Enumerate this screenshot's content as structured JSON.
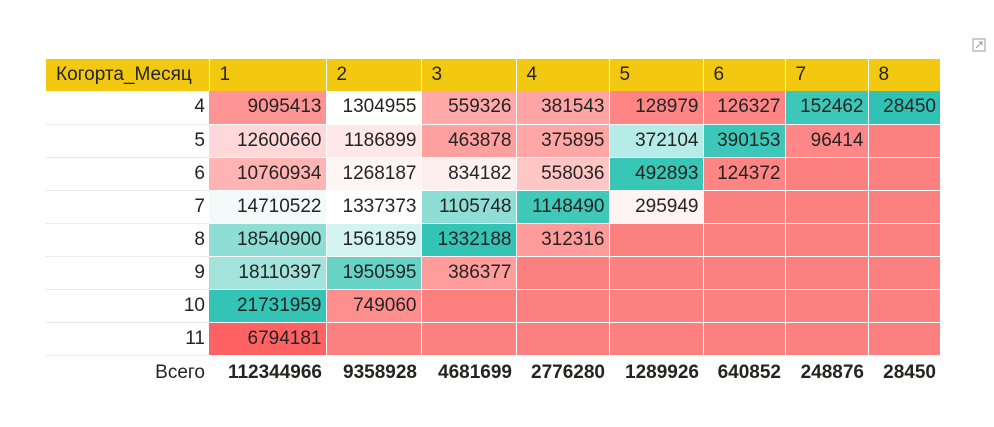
{
  "focus_icon": "focus-mode-icon",
  "matrix": {
    "corner_label": "Когорта_Месяц",
    "columns": [
      "1",
      "2",
      "3",
      "4",
      "5",
      "6",
      "7",
      "8"
    ],
    "rows": [
      {
        "label": "4",
        "values": [
          "9095413",
          "1304955",
          "559326",
          "381543",
          "128979",
          "126327",
          "152462",
          "28450"
        ]
      },
      {
        "label": "5",
        "values": [
          "12600660",
          "1186899",
          "463878",
          "375895",
          "372104",
          "390153",
          "96414",
          ""
        ]
      },
      {
        "label": "6",
        "values": [
          "10760934",
          "1268187",
          "834182",
          "558036",
          "492893",
          "124372",
          "",
          ""
        ]
      },
      {
        "label": "7",
        "values": [
          "14710522",
          "1337373",
          "1105748",
          "1148490",
          "295949",
          "",
          "",
          ""
        ]
      },
      {
        "label": "8",
        "values": [
          "18540900",
          "1561859",
          "1332188",
          "312316",
          "",
          "",
          "",
          ""
        ]
      },
      {
        "label": "9",
        "values": [
          "18110397",
          "1950595",
          "386377",
          "",
          "",
          "",
          "",
          ""
        ]
      },
      {
        "label": "10",
        "values": [
          "21731959",
          "749060",
          "",
          "",
          "",
          "",
          "",
          ""
        ]
      },
      {
        "label": "11",
        "values": [
          "6794181",
          "",
          "",
          "",
          "",
          "",
          "",
          ""
        ]
      }
    ],
    "cell_colors": [
      [
        "#ff9494",
        "#ffffff",
        "#ffa9a9",
        "#ffa5a5",
        "#ff8585",
        "#ff8585",
        "#3cc7b8",
        "#2fc2b5"
      ],
      [
        "#ffd9d9",
        "#ffe8e8",
        "#ffa0a0",
        "#ffa6a6",
        "#b6ece7",
        "#3cc7b8",
        "#ff8787",
        "#fd8080"
      ],
      [
        "#ffb3b3",
        "#fff5f5",
        "#fff0f0",
        "#ffc6c6",
        "#38c6b6",
        "#ff8585",
        "#fd8080",
        "#fd8080"
      ],
      [
        "#f2fbfa",
        "#ffffff",
        "#8fded6",
        "#40c8b9",
        "#fff3f3",
        "#fd8080",
        "#fd8080",
        "#fd8080"
      ],
      [
        "#8fded6",
        "#d2f3f0",
        "#34c4b5",
        "#ff9b9b",
        "#fd8080",
        "#fd8080",
        "#fd8080",
        "#fd8080"
      ],
      [
        "#a2e3dc",
        "#67d3c7",
        "#ff9d9d",
        "#fd8080",
        "#fd8080",
        "#fd8080",
        "#fd8080",
        "#fd8080"
      ],
      [
        "#34c4b5",
        "#ff8f8f",
        "#fd8080",
        "#fd8080",
        "#fd8080",
        "#fd8080",
        "#fd8080",
        "#fd8080"
      ],
      [
        "#ff6262",
        "#fd8080",
        "#fd8080",
        "#fd8080",
        "#fd8080",
        "#fd8080",
        "#fd8080",
        "#fd8080"
      ]
    ],
    "totals": {
      "label": "Всего",
      "values": [
        "112344966",
        "9358928",
        "4681699",
        "2776280",
        "1289926",
        "640852",
        "248876",
        "28450"
      ]
    },
    "header_color": "#f2c811"
  }
}
